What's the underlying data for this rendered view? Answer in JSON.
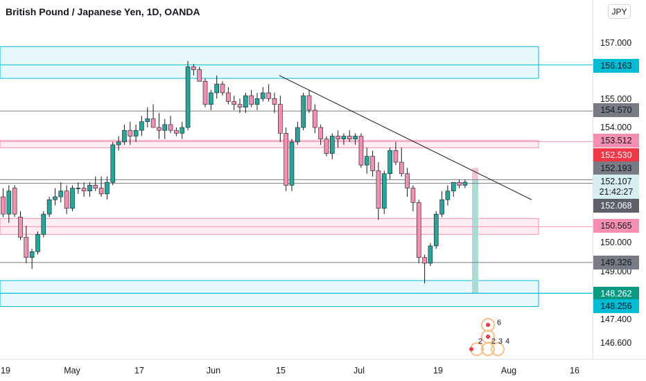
{
  "title": "British Pound / Japanese Yen, 1D, OANDA",
  "currency_button": "JPY",
  "price_ticks": [
    "157.000",
    "155.000",
    "154.000",
    "150.000",
    "149.000",
    "147.400",
    "146.600"
  ],
  "price_labels": [
    {
      "text": "156.163",
      "bg": "#00bcd4",
      "fg": "#131722"
    },
    {
      "text": "154.570",
      "bg": "#787b86",
      "fg": "#131722"
    },
    {
      "text": "153.512",
      "bg": "#f48fb1",
      "fg": "#131722"
    },
    {
      "text": "152.530",
      "bg": "#f23645",
      "fg": "#ffffff"
    },
    {
      "text": "152.193",
      "bg": "#787b86",
      "fg": "#131722"
    },
    {
      "text": "152.107",
      "sub": "21:42:27",
      "bg": "#d6eef0",
      "fg": "#131722"
    },
    {
      "text": "152.068",
      "bg": "#5d606b",
      "fg": "#ffffff"
    },
    {
      "text": "150.565",
      "bg": "#f48fb1",
      "fg": "#131722"
    },
    {
      "text": "149.326",
      "bg": "#787b86",
      "fg": "#131722"
    },
    {
      "text": "148.262",
      "bg": "#089981",
      "fg": "#ffffff"
    },
    {
      "text": "148.256",
      "bg": "#00bcd4",
      "fg": "#131722"
    }
  ],
  "time_ticks": [
    "19",
    "May",
    "17",
    "Jun",
    "15",
    "Jul",
    "19",
    "Aug",
    "16"
  ],
  "event_markers": [
    "6",
    "2",
    "2",
    "3",
    "4"
  ],
  "colors": {
    "up": "#26a69a",
    "down": "#f48fb1",
    "zone_blue": "#00bcd4",
    "zone_pink": "#f48fb1",
    "level_gray": "#787b86",
    "trendline": "#131722"
  },
  "chart_data": {
    "type": "candlestick",
    "title": "British Pound / Japanese Yen, 1D, OANDA",
    "interval": "1D",
    "ylim": [
      146.2,
      158.2
    ],
    "horizontal_levels": [
      156.163,
      154.57,
      153.512,
      152.193,
      152.068,
      150.565,
      149.326,
      148.262,
      148.256
    ],
    "zones": [
      {
        "color": "blue",
        "from": 155.7,
        "to": 156.8
      },
      {
        "color": "pink",
        "from": 153.3,
        "to": 153.55
      },
      {
        "color": "pink",
        "from": 150.3,
        "to": 150.85
      },
      {
        "color": "blue",
        "from": 147.8,
        "to": 148.7
      }
    ],
    "trendline": {
      "start": {
        "x": "Jun 15",
        "y": 155.8
      },
      "end": {
        "x": "Aug 1",
        "y": 151.5
      }
    },
    "projection_box": {
      "x": "Jul 24",
      "from": 148.262,
      "to": 152.3
    },
    "candles": [
      [
        151.6,
        151.9,
        150.9,
        151.0
      ],
      [
        151.0,
        152.0,
        150.7,
        151.8
      ],
      [
        151.9,
        152.0,
        150.9,
        151.0
      ],
      [
        150.9,
        151.1,
        150.1,
        150.2
      ],
      [
        150.2,
        150.6,
        149.3,
        149.5
      ],
      [
        149.5,
        149.8,
        149.1,
        149.7
      ],
      [
        149.7,
        150.4,
        149.6,
        150.3
      ],
      [
        150.3,
        151.1,
        150.2,
        151.0
      ],
      [
        151.0,
        151.6,
        150.9,
        151.5
      ],
      [
        151.5,
        151.9,
        151.3,
        151.6
      ],
      [
        151.6,
        152.1,
        151.4,
        151.8
      ],
      [
        151.8,
        152.0,
        151.0,
        151.2
      ],
      [
        151.2,
        152.0,
        151.1,
        151.9
      ],
      [
        151.9,
        152.1,
        151.7,
        151.9
      ],
      [
        151.9,
        152.1,
        151.6,
        151.8
      ],
      [
        151.8,
        152.1,
        151.6,
        152.0
      ],
      [
        152.0,
        152.3,
        151.8,
        151.9
      ],
      [
        151.9,
        152.3,
        151.6,
        151.7
      ],
      [
        151.7,
        152.3,
        151.5,
        152.1
      ],
      [
        152.1,
        153.5,
        152.0,
        153.4
      ],
      [
        153.4,
        153.7,
        153.2,
        153.5
      ],
      [
        153.5,
        154.1,
        153.4,
        153.9
      ],
      [
        153.9,
        154.2,
        153.4,
        153.7
      ],
      [
        153.7,
        154.1,
        153.5,
        153.9
      ],
      [
        153.9,
        154.4,
        153.7,
        154.2
      ],
      [
        154.2,
        154.7,
        154.0,
        154.3
      ],
      [
        154.3,
        154.8,
        154.1,
        154.0
      ],
      [
        154.0,
        154.5,
        153.6,
        153.9
      ],
      [
        153.9,
        154.3,
        153.6,
        154.1
      ],
      [
        154.1,
        154.4,
        153.8,
        153.9
      ],
      [
        153.9,
        154.0,
        153.7,
        153.8
      ],
      [
        153.8,
        154.2,
        153.6,
        154.0
      ],
      [
        154.0,
        156.3,
        153.9,
        156.1
      ],
      [
        156.1,
        156.2,
        155.8,
        156.0
      ],
      [
        156.0,
        156.1,
        155.6,
        155.6
      ],
      [
        155.6,
        155.7,
        154.7,
        154.8
      ],
      [
        154.8,
        155.3,
        154.6,
        155.2
      ],
      [
        155.2,
        155.8,
        155.0,
        155.5
      ],
      [
        155.5,
        155.6,
        155.1,
        155.2
      ],
      [
        155.2,
        155.4,
        154.8,
        154.9
      ],
      [
        154.9,
        155.1,
        154.6,
        154.8
      ],
      [
        154.8,
        155.0,
        154.5,
        154.7
      ],
      [
        154.7,
        155.2,
        154.5,
        155.1
      ],
      [
        155.1,
        155.3,
        154.7,
        154.8
      ],
      [
        154.8,
        155.2,
        154.6,
        155.0
      ],
      [
        155.0,
        155.4,
        154.9,
        155.2
      ],
      [
        155.2,
        155.5,
        154.9,
        155.0
      ],
      [
        155.0,
        155.2,
        154.5,
        154.8
      ],
      [
        154.8,
        155.1,
        153.5,
        153.8
      ],
      [
        153.8,
        154.0,
        151.8,
        152.0
      ],
      [
        152.0,
        153.6,
        151.8,
        153.5
      ],
      [
        153.5,
        154.2,
        153.4,
        154.0
      ],
      [
        154.0,
        155.2,
        153.9,
        155.1
      ],
      [
        155.1,
        155.3,
        154.5,
        154.6
      ],
      [
        154.6,
        154.8,
        153.8,
        154.0
      ],
      [
        154.0,
        154.1,
        153.4,
        153.6
      ],
      [
        153.6,
        153.7,
        153.0,
        153.1
      ],
      [
        153.1,
        153.8,
        152.9,
        153.7
      ],
      [
        153.7,
        153.9,
        153.3,
        153.6
      ],
      [
        153.6,
        153.8,
        153.4,
        153.7
      ],
      [
        153.7,
        153.9,
        153.5,
        153.6
      ],
      [
        153.6,
        153.8,
        153.4,
        153.7
      ],
      [
        153.7,
        153.8,
        152.6,
        152.7
      ],
      [
        152.7,
        153.3,
        152.4,
        153.0
      ],
      [
        153.0,
        153.2,
        152.3,
        152.5
      ],
      [
        152.5,
        152.8,
        150.8,
        151.2
      ],
      [
        151.2,
        152.5,
        151.0,
        152.4
      ],
      [
        152.4,
        153.3,
        152.2,
        153.2
      ],
      [
        153.2,
        153.5,
        152.7,
        152.8
      ],
      [
        152.8,
        153.3,
        152.3,
        152.4
      ],
      [
        152.4,
        152.6,
        151.6,
        151.9
      ],
      [
        151.9,
        152.0,
        151.1,
        151.4
      ],
      [
        151.4,
        151.5,
        149.3,
        149.5
      ],
      [
        149.5,
        149.6,
        148.6,
        149.3
      ],
      [
        149.3,
        150.0,
        149.2,
        149.9
      ],
      [
        149.9,
        151.1,
        149.8,
        151.0
      ],
      [
        151.0,
        151.8,
        150.9,
        151.5
      ],
      [
        151.5,
        152.0,
        151.3,
        151.8
      ],
      [
        151.8,
        152.1,
        151.6,
        152.1
      ],
      [
        152.1,
        152.2,
        151.9,
        152.0
      ],
      [
        152.0,
        152.2,
        151.9,
        152.107
      ]
    ]
  }
}
